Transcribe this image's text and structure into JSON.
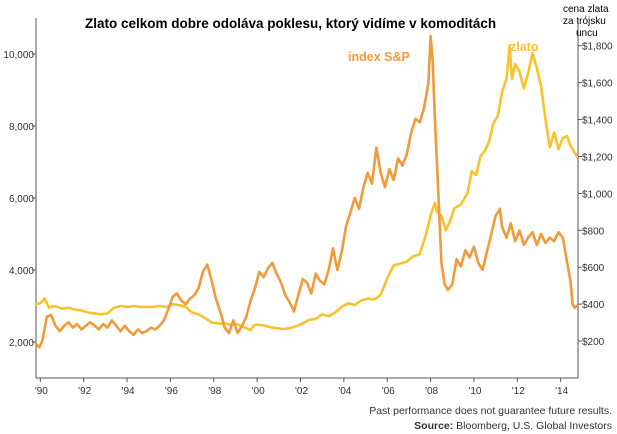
{
  "chart_data": {
    "type": "line",
    "title": "Zlato celkom dobre odoláva poklesu, ktorý vidíme v komoditách",
    "right_axis_title": [
      "cena zlata",
      "za trójsku",
      "uncu"
    ],
    "x_tick_labels": [
      "'90",
      "'92",
      "'94",
      "'96",
      "'98",
      "'00",
      "'02",
      "'04",
      "'06",
      "'08",
      "'10",
      "'12",
      "'14"
    ],
    "x_ticks": [
      1990,
      1992,
      1994,
      1996,
      1998,
      2000,
      2002,
      2004,
      2006,
      2008,
      2010,
      2012,
      2014
    ],
    "xlim": [
      1989.8,
      2014.8
    ],
    "y_left": {
      "lim": [
        1000,
        11000
      ],
      "ticks": [
        2000,
        4000,
        6000,
        8000,
        10000
      ],
      "tick_labels": [
        "2,000",
        "4,000",
        "6,000",
        "8,000",
        "10,000"
      ]
    },
    "y_right": {
      "lim": [
        0,
        1950
      ],
      "ticks": [
        200,
        400,
        600,
        800,
        1000,
        1200,
        1400,
        1600,
        1800
      ],
      "tick_labels": [
        "$200",
        "$400",
        "$600",
        "$800",
        "$1,000",
        "$1,200",
        "$1,400",
        "$1,600",
        "$1,800"
      ]
    },
    "grid": false,
    "series": [
      {
        "name": "index S&P",
        "axis": "left",
        "color": "#EE9B3B",
        "points": [
          [
            1989.8,
            1950
          ],
          [
            1989.95,
            1850
          ],
          [
            1990.1,
            2050
          ],
          [
            1990.3,
            2700
          ],
          [
            1990.5,
            2750
          ],
          [
            1990.7,
            2450
          ],
          [
            1990.9,
            2300
          ],
          [
            1991.1,
            2450
          ],
          [
            1991.3,
            2550
          ],
          [
            1991.5,
            2400
          ],
          [
            1991.7,
            2500
          ],
          [
            1991.9,
            2350
          ],
          [
            1992.1,
            2450
          ],
          [
            1992.3,
            2550
          ],
          [
            1992.5,
            2450
          ],
          [
            1992.7,
            2350
          ],
          [
            1992.9,
            2500
          ],
          [
            1993.1,
            2400
          ],
          [
            1993.3,
            2600
          ],
          [
            1993.5,
            2450
          ],
          [
            1993.7,
            2300
          ],
          [
            1993.9,
            2450
          ],
          [
            1994.1,
            2300
          ],
          [
            1994.3,
            2200
          ],
          [
            1994.5,
            2350
          ],
          [
            1994.7,
            2250
          ],
          [
            1994.9,
            2300
          ],
          [
            1995.1,
            2400
          ],
          [
            1995.3,
            2350
          ],
          [
            1995.5,
            2450
          ],
          [
            1995.7,
            2600
          ],
          [
            1995.9,
            2900
          ],
          [
            1996.1,
            3250
          ],
          [
            1996.3,
            3350
          ],
          [
            1996.5,
            3150
          ],
          [
            1996.7,
            3050
          ],
          [
            1996.9,
            3200
          ],
          [
            1997.1,
            3300
          ],
          [
            1997.3,
            3500
          ],
          [
            1997.5,
            3950
          ],
          [
            1997.7,
            4150
          ],
          [
            1997.9,
            3700
          ],
          [
            1998.1,
            3200
          ],
          [
            1998.3,
            2850
          ],
          [
            1998.5,
            2400
          ],
          [
            1998.7,
            2250
          ],
          [
            1998.9,
            2600
          ],
          [
            1999.1,
            2250
          ],
          [
            1999.3,
            2450
          ],
          [
            1999.5,
            2700
          ],
          [
            1999.7,
            3150
          ],
          [
            1999.9,
            3500
          ],
          [
            2000.1,
            3950
          ],
          [
            2000.3,
            3800
          ],
          [
            2000.5,
            4050
          ],
          [
            2000.7,
            4200
          ],
          [
            2000.9,
            3900
          ],
          [
            2001.1,
            3650
          ],
          [
            2001.3,
            3300
          ],
          [
            2001.5,
            3100
          ],
          [
            2001.7,
            2850
          ],
          [
            2001.9,
            3300
          ],
          [
            2002.1,
            3750
          ],
          [
            2002.3,
            3650
          ],
          [
            2002.5,
            3350
          ],
          [
            2002.7,
            3900
          ],
          [
            2002.9,
            3700
          ],
          [
            2003.1,
            3600
          ],
          [
            2003.3,
            4000
          ],
          [
            2003.5,
            4600
          ],
          [
            2003.7,
            4000
          ],
          [
            2003.9,
            4500
          ],
          [
            2004.1,
            5200
          ],
          [
            2004.3,
            5600
          ],
          [
            2004.5,
            6000
          ],
          [
            2004.7,
            5700
          ],
          [
            2004.9,
            6300
          ],
          [
            2005.1,
            6700
          ],
          [
            2005.3,
            6400
          ],
          [
            2005.5,
            7400
          ],
          [
            2005.7,
            6700
          ],
          [
            2005.9,
            6300
          ],
          [
            2006.1,
            6800
          ],
          [
            2006.3,
            6500
          ],
          [
            2006.5,
            7100
          ],
          [
            2006.7,
            6900
          ],
          [
            2006.9,
            7200
          ],
          [
            2007.1,
            7800
          ],
          [
            2007.3,
            8200
          ],
          [
            2007.5,
            8100
          ],
          [
            2007.7,
            8500
          ],
          [
            2007.9,
            9200
          ],
          [
            2008.0,
            10500
          ],
          [
            2008.1,
            9800
          ],
          [
            2008.2,
            8200
          ],
          [
            2008.35,
            6200
          ],
          [
            2008.5,
            4200
          ],
          [
            2008.65,
            3600
          ],
          [
            2008.8,
            3450
          ],
          [
            2009.0,
            3600
          ],
          [
            2009.2,
            4300
          ],
          [
            2009.4,
            4100
          ],
          [
            2009.6,
            4550
          ],
          [
            2009.8,
            4350
          ],
          [
            2010.0,
            4650
          ],
          [
            2010.2,
            4200
          ],
          [
            2010.4,
            4000
          ],
          [
            2010.6,
            4500
          ],
          [
            2010.8,
            5000
          ],
          [
            2011.0,
            5500
          ],
          [
            2011.2,
            5700
          ],
          [
            2011.3,
            5200
          ],
          [
            2011.5,
            4900
          ],
          [
            2011.7,
            5300
          ],
          [
            2011.9,
            4800
          ],
          [
            2012.1,
            5100
          ],
          [
            2012.3,
            4700
          ],
          [
            2012.5,
            4900
          ],
          [
            2012.7,
            5050
          ],
          [
            2012.9,
            4700
          ],
          [
            2013.1,
            5000
          ],
          [
            2013.3,
            4750
          ],
          [
            2013.5,
            4900
          ],
          [
            2013.7,
            4800
          ],
          [
            2013.9,
            5050
          ],
          [
            2014.1,
            4900
          ],
          [
            2014.3,
            4200
          ],
          [
            2014.45,
            3700
          ],
          [
            2014.55,
            3050
          ],
          [
            2014.65,
            2950
          ],
          [
            2014.75,
            3000
          ]
        ]
      },
      {
        "name": "zlato",
        "axis": "right",
        "color": "#F7C22E",
        "points": [
          [
            1989.8,
            400
          ],
          [
            1990.0,
            405
          ],
          [
            1990.2,
            430
          ],
          [
            1990.4,
            380
          ],
          [
            1990.6,
            390
          ],
          [
            1990.8,
            385
          ],
          [
            1991.0,
            375
          ],
          [
            1991.3,
            380
          ],
          [
            1991.6,
            370
          ],
          [
            1991.9,
            365
          ],
          [
            1992.2,
            355
          ],
          [
            1992.5,
            350
          ],
          [
            1992.8,
            345
          ],
          [
            1993.1,
            350
          ],
          [
            1993.4,
            380
          ],
          [
            1993.7,
            390
          ],
          [
            1994.0,
            385
          ],
          [
            1994.3,
            390
          ],
          [
            1994.6,
            385
          ],
          [
            1994.9,
            385
          ],
          [
            1995.2,
            385
          ],
          [
            1995.5,
            390
          ],
          [
            1995.8,
            385
          ],
          [
            1996.1,
            400
          ],
          [
            1996.4,
            395
          ],
          [
            1996.7,
            385
          ],
          [
            1997.0,
            355
          ],
          [
            1997.3,
            345
          ],
          [
            1997.6,
            325
          ],
          [
            1997.9,
            300
          ],
          [
            1998.2,
            295
          ],
          [
            1998.5,
            295
          ],
          [
            1998.8,
            290
          ],
          [
            1999.1,
            290
          ],
          [
            1999.4,
            275
          ],
          [
            1999.7,
            260
          ],
          [
            1999.85,
            285
          ],
          [
            2000.0,
            290
          ],
          [
            2000.3,
            285
          ],
          [
            2000.6,
            275
          ],
          [
            2000.9,
            270
          ],
          [
            2001.2,
            265
          ],
          [
            2001.5,
            270
          ],
          [
            2001.8,
            280
          ],
          [
            2002.1,
            295
          ],
          [
            2002.4,
            315
          ],
          [
            2002.7,
            320
          ],
          [
            2003.0,
            345
          ],
          [
            2003.3,
            335
          ],
          [
            2003.6,
            355
          ],
          [
            2003.9,
            385
          ],
          [
            2004.2,
            405
          ],
          [
            2004.5,
            395
          ],
          [
            2004.8,
            420
          ],
          [
            2005.1,
            430
          ],
          [
            2005.4,
            425
          ],
          [
            2005.7,
            450
          ],
          [
            2006.0,
            540
          ],
          [
            2006.3,
            610
          ],
          [
            2006.6,
            620
          ],
          [
            2006.9,
            630
          ],
          [
            2007.2,
            660
          ],
          [
            2007.5,
            670
          ],
          [
            2007.8,
            780
          ],
          [
            2008.0,
            880
          ],
          [
            2008.2,
            950
          ],
          [
            2008.3,
            900
          ],
          [
            2008.5,
            880
          ],
          [
            2008.7,
            800
          ],
          [
            2008.9,
            850
          ],
          [
            2009.1,
            920
          ],
          [
            2009.4,
            940
          ],
          [
            2009.7,
            1000
          ],
          [
            2009.9,
            1120
          ],
          [
            2010.1,
            1100
          ],
          [
            2010.3,
            1200
          ],
          [
            2010.5,
            1230
          ],
          [
            2010.7,
            1280
          ],
          [
            2010.9,
            1380
          ],
          [
            2011.1,
            1420
          ],
          [
            2011.3,
            1550
          ],
          [
            2011.5,
            1620
          ],
          [
            2011.65,
            1800
          ],
          [
            2011.75,
            1620
          ],
          [
            2011.9,
            1700
          ],
          [
            2012.1,
            1660
          ],
          [
            2012.3,
            1570
          ],
          [
            2012.5,
            1650
          ],
          [
            2012.7,
            1760
          ],
          [
            2012.9,
            1680
          ],
          [
            2013.1,
            1580
          ],
          [
            2013.3,
            1400
          ],
          [
            2013.5,
            1250
          ],
          [
            2013.7,
            1330
          ],
          [
            2013.9,
            1240
          ],
          [
            2014.1,
            1300
          ],
          [
            2014.3,
            1310
          ],
          [
            2014.45,
            1260
          ],
          [
            2014.6,
            1230
          ],
          [
            2014.75,
            1200
          ]
        ]
      }
    ],
    "annotations": [
      {
        "text": "index S&P",
        "color": "#EE9B3B"
      },
      {
        "text": "zlato",
        "color": "#F7C22E"
      }
    ],
    "footnote": "Past performance does not guarantee future results.",
    "source_label": "Source:",
    "source_text": " Bloomberg, U.S. Global Investors"
  }
}
